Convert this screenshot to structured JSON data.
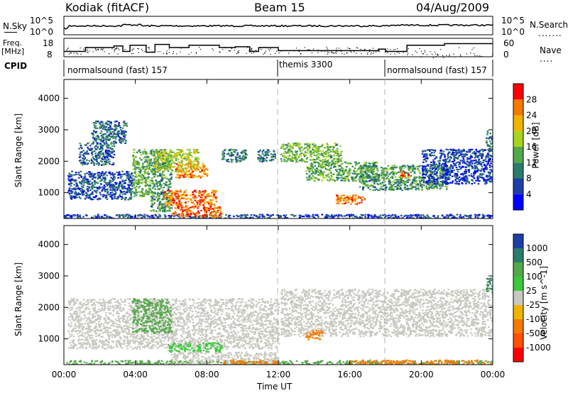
{
  "header": {
    "station": "Kodiak (fitACF)",
    "beam": "Beam 15",
    "date": "04/Aug/2009"
  },
  "noise_panel": {
    "left_label": "N.Sky",
    "right_label": "N.Search",
    "left_ticks": [
      "10^5",
      "10^0"
    ],
    "right_ticks": [
      "10^5",
      "10^0"
    ]
  },
  "freq_panel": {
    "left_label_line1": "Freq.",
    "left_label_line2": "[MHz]",
    "right_label": "Nave",
    "left_ticks": [
      "18",
      "8"
    ],
    "right_ticks": [
      "60",
      "0"
    ],
    "freq_steps_mhz": [
      {
        "t": 0.0,
        "v": 10.5
      },
      {
        "t": 1.2,
        "v": 10.5
      },
      {
        "t": 1.2,
        "v": 13
      },
      {
        "t": 2.8,
        "v": 13
      },
      {
        "t": 2.8,
        "v": 14
      },
      {
        "t": 3.3,
        "v": 14
      },
      {
        "t": 3.3,
        "v": 10.5
      },
      {
        "t": 3.7,
        "v": 10.5
      },
      {
        "t": 3.7,
        "v": 14.5
      },
      {
        "t": 4.6,
        "v": 14.5
      },
      {
        "t": 4.6,
        "v": 10
      },
      {
        "t": 5.1,
        "v": 10
      },
      {
        "t": 5.1,
        "v": 15
      },
      {
        "t": 5.9,
        "v": 15
      },
      {
        "t": 5.9,
        "v": 13
      },
      {
        "t": 7.0,
        "v": 13
      },
      {
        "t": 7.0,
        "v": 14.5
      },
      {
        "t": 8.7,
        "v": 14.5
      },
      {
        "t": 8.7,
        "v": 13
      },
      {
        "t": 9.6,
        "v": 13
      },
      {
        "t": 9.6,
        "v": 13.5
      },
      {
        "t": 10.4,
        "v": 13.5
      },
      {
        "t": 10.4,
        "v": 10.5
      },
      {
        "t": 10.9,
        "v": 10.5
      },
      {
        "t": 10.9,
        "v": 13
      },
      {
        "t": 12.0,
        "v": 13
      },
      {
        "t": 12.0,
        "v": 11
      },
      {
        "t": 17.6,
        "v": 11
      },
      {
        "t": 17.6,
        "v": 12
      },
      {
        "t": 18.0,
        "v": 12
      },
      {
        "t": 18.0,
        "v": 10.5
      },
      {
        "t": 19.2,
        "v": 10.5
      },
      {
        "t": 19.2,
        "v": 14.5
      },
      {
        "t": 21.3,
        "v": 14.5
      },
      {
        "t": 21.3,
        "v": 15.5
      },
      {
        "t": 24.0,
        "v": 15.5
      }
    ]
  },
  "cpid": {
    "label": "CPID",
    "segments": [
      {
        "start": 0.0,
        "text": "normalsound (fast) 157"
      },
      {
        "start": 12.0,
        "text": "themis 3300"
      },
      {
        "start": 18.0,
        "text": "normalsound (fast) 157"
      }
    ]
  },
  "power_panel": {
    "ylabel": "Slant Range [km]",
    "yticks": [
      1000,
      2000,
      3000,
      4000
    ],
    "ylim": [
      180,
      4600
    ],
    "colorbar_label": "Power [dB]",
    "colorbar_ticks": [
      "28",
      "24",
      "20",
      "16",
      "12",
      "8",
      "4"
    ],
    "colors": [
      "#0000ff",
      "#1e3fa8",
      "#2a7d6a",
      "#55a84a",
      "#a8d41e",
      "#f0b400",
      "#f57a00",
      "#ff0000"
    ]
  },
  "velocity_panel": {
    "ylabel": "Slant Range [km]",
    "yticks": [
      1000,
      2000,
      3000,
      4000
    ],
    "ylim": [
      180,
      4600
    ],
    "colorbar_label": "Velocity [m s^-1]",
    "colorbar_ticks": [
      "1000",
      "500",
      "100",
      "25",
      "-25",
      "-100",
      "-500",
      "-1000"
    ],
    "colors": [
      "#1e3fa8",
      "#2a7d6a",
      "#55a84a",
      "#3cc83c",
      "#c8c8c0",
      "#f0b400",
      "#f57a00",
      "#ff5000",
      "#ff0000"
    ]
  },
  "xaxis": {
    "label": "Time UT",
    "ticks": [
      "00:00",
      "04:00",
      "08:00",
      "12:00",
      "16:00",
      "20:00",
      "00:00"
    ],
    "xlim": [
      0,
      24
    ]
  },
  "chart_data": {
    "type": "heatmap",
    "title": "Kodiak (fitACF)  Beam 15  04/Aug/2009",
    "xlabel": "Time UT",
    "ylabel": "Slant Range [km]",
    "xlim": [
      0,
      24
    ],
    "ylim": [
      180,
      4600
    ],
    "power_scatter_regions_db": [
      {
        "t0": 0.0,
        "t1": 24.0,
        "r0": 180,
        "r1": 330,
        "level": 6
      },
      {
        "t0": 0.2,
        "t1": 3.8,
        "r0": 800,
        "r1": 1700,
        "level": 7
      },
      {
        "t0": 0.8,
        "t1": 2.8,
        "r0": 1900,
        "r1": 2600,
        "level": 8
      },
      {
        "t0": 1.5,
        "t1": 3.5,
        "r0": 2600,
        "r1": 3300,
        "level": 8
      },
      {
        "t0": 3.8,
        "t1": 4.8,
        "r0": 900,
        "r1": 2400,
        "level": 14
      },
      {
        "t0": 4.8,
        "t1": 6.0,
        "r0": 400,
        "r1": 2400,
        "level": 12
      },
      {
        "t0": 5.0,
        "t1": 7.5,
        "r0": 1700,
        "r1": 2400,
        "level": 18
      },
      {
        "t0": 6.2,
        "t1": 8.0,
        "r0": 1500,
        "r1": 1950,
        "level": 24
      },
      {
        "t0": 5.5,
        "t1": 8.5,
        "r0": 600,
        "r1": 1100,
        "level": 26
      },
      {
        "t0": 6.0,
        "t1": 8.8,
        "r0": 250,
        "r1": 600,
        "level": 27
      },
      {
        "t0": 8.8,
        "t1": 10.2,
        "r0": 2000,
        "r1": 2400,
        "level": 10
      },
      {
        "t0": 10.8,
        "t1": 11.8,
        "r0": 2000,
        "r1": 2400,
        "level": 10
      },
      {
        "t0": 12.1,
        "t1": 15.5,
        "r0": 2000,
        "r1": 2600,
        "level": 15
      },
      {
        "t0": 13.5,
        "t1": 17.5,
        "r0": 1400,
        "r1": 2000,
        "level": 14
      },
      {
        "t0": 15.2,
        "t1": 16.8,
        "r0": 650,
        "r1": 950,
        "level": 26
      },
      {
        "t0": 16.5,
        "t1": 21.5,
        "r0": 1100,
        "r1": 1900,
        "level": 12
      },
      {
        "t0": 18.7,
        "t1": 19.3,
        "r0": 1500,
        "r1": 1700,
        "level": 25
      },
      {
        "t0": 20.0,
        "t1": 24.0,
        "r0": 1300,
        "r1": 2400,
        "level": 6
      },
      {
        "t0": 23.6,
        "t1": 24.0,
        "r0": 2400,
        "r1": 3000,
        "level": 9
      }
    ],
    "velocity_scatter_regions_ms": [
      {
        "t0": 0.0,
        "t1": 24.0,
        "r0": 180,
        "r1": 330,
        "level": 200
      },
      {
        "t0": 0.2,
        "t1": 12.0,
        "r0": 700,
        "r1": 2300,
        "level": 0
      },
      {
        "t0": 3.8,
        "t1": 6.0,
        "r0": 1200,
        "r1": 2300,
        "level": 300
      },
      {
        "t0": 5.8,
        "t1": 8.8,
        "r0": 600,
        "r1": 900,
        "level": 60
      },
      {
        "t0": 6.0,
        "t1": 12.0,
        "r0": 180,
        "r1": 600,
        "level": 0
      },
      {
        "t0": 8.8,
        "t1": 12.0,
        "r0": 180,
        "r1": 350,
        "level": -150
      },
      {
        "t0": 12.1,
        "t1": 24.0,
        "r0": 1100,
        "r1": 2600,
        "level": 0
      },
      {
        "t0": 13.5,
        "t1": 14.5,
        "r0": 1000,
        "r1": 1300,
        "level": -300
      },
      {
        "t0": 16.0,
        "t1": 24.0,
        "r0": 180,
        "r1": 350,
        "level": -150
      },
      {
        "t0": 23.6,
        "t1": 24.0,
        "r0": 2500,
        "r1": 3000,
        "level": 500
      }
    ]
  }
}
